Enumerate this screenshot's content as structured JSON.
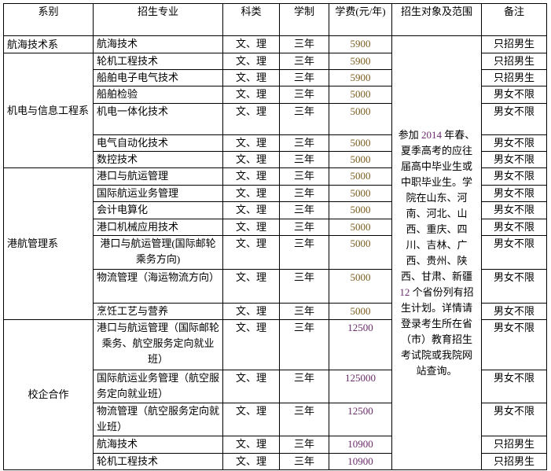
{
  "headers": [
    "系别",
    "招生专业",
    "科类",
    "学制",
    "学费(元/年)",
    "招生对象及范围",
    "备注"
  ],
  "scope": {
    "text_before_year": "参加 ",
    "year": "2014",
    "text_after_year": " 年春、夏季高考的应往届高中毕业生或中职毕业生。学院在山东、河南、河北、山西、重庆、四川、吉林、广西、贵州、陕西、甘肃、新疆 ",
    "count": "12",
    "text_after_count": " 个省份列有招生计划。详情请登录考生所在省（市）教育招生考试院或我院网站查询。"
  },
  "colors": {
    "fee": "#7a5c1e",
    "highlight": "#6a2c6a"
  },
  "departments": [
    {
      "name": "航海技术系",
      "align": "left",
      "rows": [
        {
          "major": "航海技术",
          "subject": "文、理",
          "years": "三年",
          "fee": "5900",
          "note": "只招男生"
        }
      ]
    },
    {
      "name": "机电与信息工程系",
      "align": "left",
      "rows": [
        {
          "major": "轮机工程技术",
          "subject": "文、理",
          "years": "三年",
          "fee": "5900",
          "note": "只招男生"
        },
        {
          "major": "船舶电子电气技术",
          "subject": "文、理",
          "years": "三年",
          "fee": "5900",
          "note": "只招男生"
        },
        {
          "major": "船舶检验",
          "subject": "文、理",
          "years": "三年",
          "fee": "5000",
          "note": "男女不限"
        },
        {
          "major": "机电一体化技术",
          "subject": "文、理",
          "years": "三年",
          "fee": "5000",
          "note": "男女不限",
          "tall": true
        },
        {
          "major": "电气自动化技术",
          "subject": "文、理",
          "years": "三年",
          "fee": "5000",
          "note": "男女不限"
        },
        {
          "major": "数控技术",
          "subject": "文、理",
          "years": "三年",
          "fee": "5000",
          "note": "男女不限"
        }
      ]
    },
    {
      "name": "港航管理系",
      "align": "left",
      "rows": [
        {
          "major": "港口与航运管理",
          "subject": "文、理",
          "years": "三年",
          "fee": "5000",
          "note": "男女不限"
        },
        {
          "major": "国际航运业务管理",
          "subject": "文、理",
          "years": "三年",
          "fee": "5000",
          "note": "男女不限"
        },
        {
          "major": "会计电算化",
          "subject": "文、理",
          "years": "三年",
          "fee": "5000",
          "note": "男女不限"
        },
        {
          "major": "港口机械应用技术",
          "subject": "文、理",
          "years": "三年",
          "fee": "5000",
          "note": "男女不限"
        },
        {
          "major": "港口与航运管理(国际邮轮乘务方向)",
          "subject": "文、理",
          "years": "三年",
          "fee": "5000",
          "note": "男女不限",
          "center": true
        },
        {
          "major": "物流管理（海运物流方向）",
          "subject": "文、理",
          "years": "三年",
          "fee": "5000",
          "note": "男女不限",
          "center": true
        },
        {
          "major": "烹饪工艺与营养",
          "subject": "文、理",
          "years": "三年",
          "fee": "5000",
          "note": "男女不限"
        }
      ]
    },
    {
      "name": "校企合作",
      "align": "center",
      "rows": [
        {
          "major": "港口与航运管理（国际邮轮乘务、航空服务定向就业班）",
          "subject": "文、理",
          "years": "三年",
          "fee": "12500",
          "note": "男女不限",
          "center": true,
          "alt": true
        },
        {
          "major": "国际航运业务管理（航空服务定向就业班）",
          "subject": "文、理",
          "years": "三年",
          "fee": "125000",
          "note": "男女不限",
          "alt": true
        },
        {
          "major": "物流管理（航空服务定向就业班）",
          "subject": "文、理",
          "years": "三年",
          "fee": "12500",
          "note": "男女不限",
          "alt": true
        },
        {
          "major": "航海技术",
          "subject": "文、理",
          "years": "三年",
          "fee": "10900",
          "note": "只招男生",
          "alt": true
        },
        {
          "major": "轮机工程技术",
          "subject": "文、理",
          "years": "三年",
          "fee": "10900",
          "note": "只招男生",
          "alt": true
        }
      ]
    }
  ]
}
